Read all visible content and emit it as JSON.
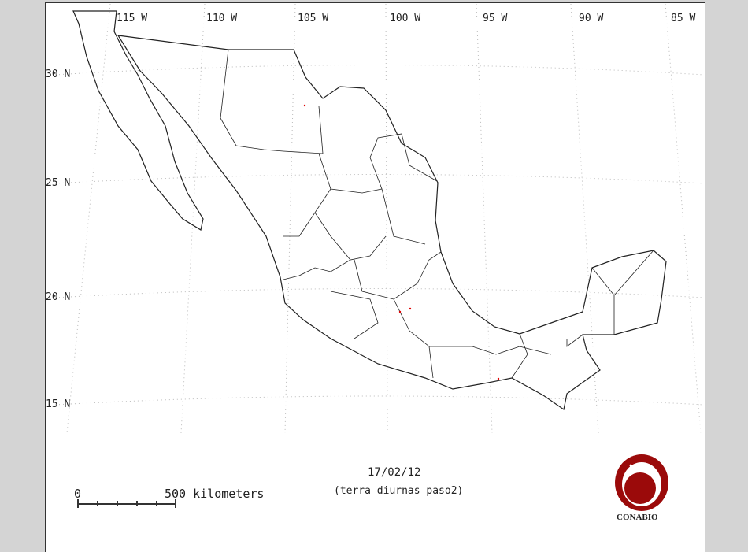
{
  "map": {
    "longitude_labels": [
      "115 W",
      "110 W",
      "105 W",
      "100 W",
      "95 W",
      "90 W",
      "85 W"
    ],
    "latitude_labels": [
      "30 N",
      "25 N",
      "20 N",
      "15 N"
    ],
    "hotspot_color": "#e00000",
    "outline_color": "#222222"
  },
  "scale_bar": {
    "start_label": "0",
    "end_label": "500 kilometers"
  },
  "date": "17/02/12",
  "subtitle": "(terra diurnas paso2)",
  "logo": {
    "text": "CONABIO",
    "color": "#9b0a0a"
  }
}
